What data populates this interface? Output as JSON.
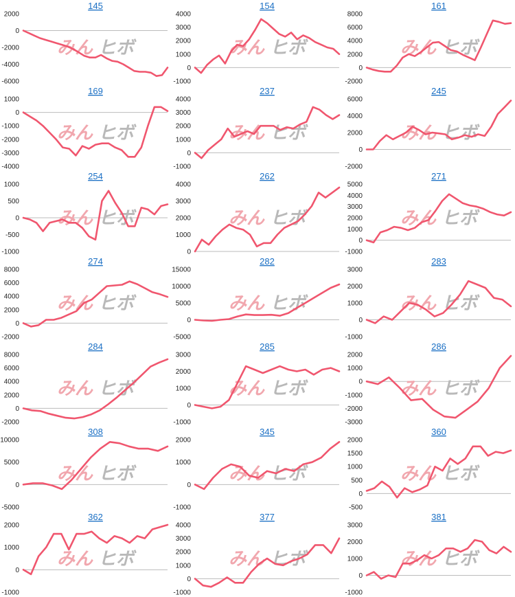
{
  "watermark": {
    "part1": "みん",
    "part2": "ヒボ",
    "colors": {
      "part1": "#f1a7ae",
      "part2": "#b9b9b9"
    }
  },
  "colors": {
    "line": "#f0566e",
    "zero_line": "#bbbbbb",
    "title": "#1a6fc4"
  },
  "chart_data": [
    {
      "type": "line",
      "title": "145",
      "ylim": [
        -6000,
        2000
      ],
      "yticks": [
        2000,
        0,
        -2000,
        -4000,
        -6000
      ],
      "grid": false,
      "values": [
        0,
        -300,
        -600,
        -900,
        -1100,
        -1300,
        -1500,
        -1700,
        -1900,
        -2200,
        -2600,
        -3000,
        -3200,
        -3200,
        -2900,
        -3300,
        -3600,
        -3700,
        -4000,
        -4400,
        -4800,
        -4900,
        -4900,
        -5000,
        -5400,
        -5300,
        -4400
      ]
    },
    {
      "type": "line",
      "title": "154",
      "ylim": [
        -1000,
        4000
      ],
      "yticks": [
        4000,
        3000,
        2000,
        1000,
        0,
        -1000
      ],
      "grid": false,
      "values": [
        0,
        -400,
        200,
        600,
        900,
        300,
        1200,
        1700,
        1600,
        2100,
        2800,
        3600,
        3300,
        2900,
        2500,
        2300,
        2600,
        2100,
        2400,
        2200,
        1900,
        1700,
        1500,
        1400,
        1000
      ]
    },
    {
      "type": "line",
      "title": "161",
      "ylim": [
        -2000,
        8000
      ],
      "yticks": [
        8000,
        6000,
        4000,
        2000,
        0,
        -2000
      ],
      "grid": false,
      "values": [
        0,
        -300,
        -500,
        -600,
        -600,
        300,
        1500,
        2000,
        1700,
        2300,
        3000,
        3700,
        3800,
        3200,
        2600,
        2400,
        1900,
        1500,
        1100,
        3000,
        5000,
        7000,
        6800,
        6500,
        6600
      ]
    },
    {
      "type": "line",
      "title": "169",
      "ylim": [
        -4000,
        1000
      ],
      "yticks": [
        1000,
        0,
        -1000,
        -2000,
        -3000,
        -4000
      ],
      "grid": false,
      "values": [
        0,
        -300,
        -600,
        -1000,
        -1500,
        -2000,
        -2600,
        -2700,
        -3200,
        -2500,
        -2700,
        -2400,
        -2300,
        -2300,
        -2600,
        -2800,
        -3300,
        -3300,
        -2600,
        -1000,
        400,
        400,
        100
      ]
    },
    {
      "type": "line",
      "title": "237",
      "ylim": [
        -1000,
        4000
      ],
      "yticks": [
        4000,
        3000,
        2000,
        1000,
        0,
        -1000
      ],
      "grid": false,
      "values": [
        0,
        -400,
        200,
        600,
        1000,
        1800,
        1200,
        1400,
        1600,
        1400,
        2000,
        2000,
        2000,
        1700,
        1900,
        1800,
        2100,
        2300,
        3400,
        3200,
        2800,
        2500,
        2800
      ]
    },
    {
      "type": "line",
      "title": "245",
      "ylim": [
        -2000,
        6000
      ],
      "yticks": [
        6000,
        4000,
        2000,
        0,
        -2000
      ],
      "grid": false,
      "values": [
        0,
        0,
        1000,
        1700,
        1200,
        1600,
        2000,
        2700,
        2300,
        1800,
        2000,
        1900,
        1800,
        1200,
        1400,
        1700,
        1500,
        1800,
        1600,
        2700,
        4200,
        5000,
        5800
      ]
    },
    {
      "type": "line",
      "title": "254",
      "ylim": [
        -1000,
        1000
      ],
      "yticks": [
        1000,
        500,
        0,
        -500,
        -1000
      ],
      "grid": false,
      "values": [
        0,
        -50,
        -150,
        -400,
        -150,
        -100,
        -50,
        -150,
        -150,
        -300,
        -550,
        -650,
        500,
        800,
        450,
        150,
        -250,
        -250,
        300,
        250,
        100,
        350,
        400
      ]
    },
    {
      "type": "line",
      "title": "262",
      "ylim": [
        0,
        4000
      ],
      "yticks": [
        4000,
        3000,
        2000,
        1000,
        0
      ],
      "grid": false,
      "values": [
        0,
        700,
        400,
        900,
        1300,
        1600,
        1400,
        1300,
        1000,
        300,
        500,
        500,
        1000,
        1400,
        1600,
        1800,
        2200,
        2700,
        3500,
        3200,
        3500,
        3800
      ]
    },
    {
      "type": "line",
      "title": "271",
      "ylim": [
        -1000,
        5000
      ],
      "yticks": [
        5000,
        4000,
        3000,
        2000,
        1000,
        0,
        -1000
      ],
      "grid": false,
      "values": [
        0,
        -200,
        700,
        900,
        1200,
        1100,
        900,
        1100,
        1600,
        1800,
        2600,
        3500,
        4100,
        3700,
        3300,
        3100,
        3000,
        2800,
        2500,
        2300,
        2200,
        2500
      ]
    },
    {
      "type": "line",
      "title": "274",
      "ylim": [
        -2000,
        8000
      ],
      "yticks": [
        8000,
        6000,
        4000,
        2000,
        0,
        -2000
      ],
      "grid": false,
      "values": [
        0,
        -500,
        -300,
        500,
        500,
        800,
        1300,
        1800,
        3000,
        3500,
        4500,
        5500,
        5600,
        5700,
        6200,
        5800,
        5200,
        4600,
        4300,
        3900
      ]
    },
    {
      "type": "line",
      "title": "282",
      "ylim": [
        -5000,
        15000
      ],
      "yticks": [
        15000,
        10000,
        5000,
        0,
        -5000
      ],
      "grid": false,
      "values": [
        0,
        -200,
        -300,
        0,
        200,
        1000,
        1600,
        1400,
        1400,
        1500,
        1200,
        2000,
        3500,
        5000,
        6500,
        8000,
        9500,
        10500
      ]
    },
    {
      "type": "line",
      "title": "283",
      "ylim": [
        -1000,
        3000
      ],
      "yticks": [
        3000,
        2000,
        1000,
        0,
        -1000
      ],
      "grid": false,
      "values": [
        0,
        -200,
        200,
        0,
        500,
        1000,
        900,
        600,
        200,
        400,
        900,
        1500,
        2300,
        2100,
        1900,
        1300,
        1200,
        800
      ]
    },
    {
      "type": "line",
      "title": "284",
      "ylim": [
        -2000,
        8000
      ],
      "yticks": [
        8000,
        6000,
        4000,
        2000,
        0,
        -2000
      ],
      "grid": false,
      "values": [
        0,
        -300,
        -400,
        -800,
        -1100,
        -1400,
        -1500,
        -1300,
        -900,
        -300,
        600,
        1600,
        2700,
        3800,
        5000,
        6200,
        6800,
        7300
      ]
    },
    {
      "type": "line",
      "title": "285",
      "ylim": [
        -1000,
        3000
      ],
      "yticks": [
        3000,
        2000,
        1000,
        0,
        -1000
      ],
      "grid": false,
      "values": [
        0,
        -100,
        -200,
        -100,
        300,
        1300,
        2300,
        2100,
        1900,
        2100,
        2300,
        2100,
        2000,
        2100,
        1800,
        2100,
        2200,
        2000
      ]
    },
    {
      "type": "line",
      "title": "286",
      "ylim": [
        -3000,
        2000
      ],
      "yticks": [
        2000,
        1000,
        0,
        -1000,
        -2000,
        -3000
      ],
      "grid": false,
      "values": [
        0,
        -200,
        300,
        -500,
        -1400,
        -1300,
        -2100,
        -2600,
        -2700,
        -2100,
        -1500,
        -500,
        1000,
        1900
      ]
    },
    {
      "type": "line",
      "title": "308",
      "ylim": [
        -5000,
        10000
      ],
      "yticks": [
        10000,
        5000,
        0,
        -5000
      ],
      "grid": false,
      "values": [
        0,
        300,
        300,
        -200,
        -1000,
        1000,
        3500,
        6000,
        8000,
        9500,
        9200,
        8500,
        8000,
        8000,
        7500,
        8500
      ]
    },
    {
      "type": "line",
      "title": "345",
      "ylim": [
        -1000,
        2000
      ],
      "yticks": [
        2000,
        1000,
        0,
        -1000
      ],
      "grid": false,
      "values": [
        0,
        -200,
        300,
        700,
        900,
        800,
        400,
        300,
        600,
        500,
        700,
        600,
        900,
        1000,
        1200,
        1600,
        1900
      ]
    },
    {
      "type": "line",
      "title": "360",
      "ylim": [
        -500,
        2000
      ],
      "yticks": [
        2000,
        1500,
        1000,
        500,
        0,
        -500
      ],
      "grid": false,
      "values": [
        100,
        200,
        450,
        250,
        -150,
        200,
        50,
        150,
        300,
        1000,
        850,
        1300,
        1100,
        1300,
        1750,
        1750,
        1400,
        1550,
        1500,
        1600
      ]
    },
    {
      "type": "line",
      "title": "362",
      "ylim": [
        -1000,
        2000
      ],
      "yticks": [
        2000,
        1000,
        0,
        -1000
      ],
      "grid": false,
      "values": [
        0,
        -200,
        600,
        1000,
        1600,
        1600,
        900,
        1600,
        1600,
        1700,
        1400,
        1200,
        1500,
        1400,
        1200,
        1500,
        1400,
        1800,
        1900,
        2000
      ]
    },
    {
      "type": "line",
      "title": "377",
      "ylim": [
        -1000,
        4000
      ],
      "yticks": [
        4000,
        3000,
        2000,
        1000,
        0,
        -1000
      ],
      "grid": false,
      "values": [
        0,
        -500,
        -600,
        -300,
        100,
        -300,
        -300,
        500,
        1100,
        1500,
        1100,
        1000,
        1300,
        1500,
        1800,
        2500,
        2500,
        1900,
        3000
      ]
    },
    {
      "type": "line",
      "title": "381",
      "ylim": [
        -1000,
        3000
      ],
      "yticks": [
        3000,
        2000,
        1000,
        0,
        -1000
      ],
      "grid": false,
      "values": [
        0,
        200,
        -200,
        0,
        -100,
        700,
        700,
        900,
        1200,
        1000,
        1200,
        1600,
        1600,
        1400,
        1600,
        2100,
        2000,
        1500,
        1300,
        1700,
        1400
      ]
    }
  ]
}
